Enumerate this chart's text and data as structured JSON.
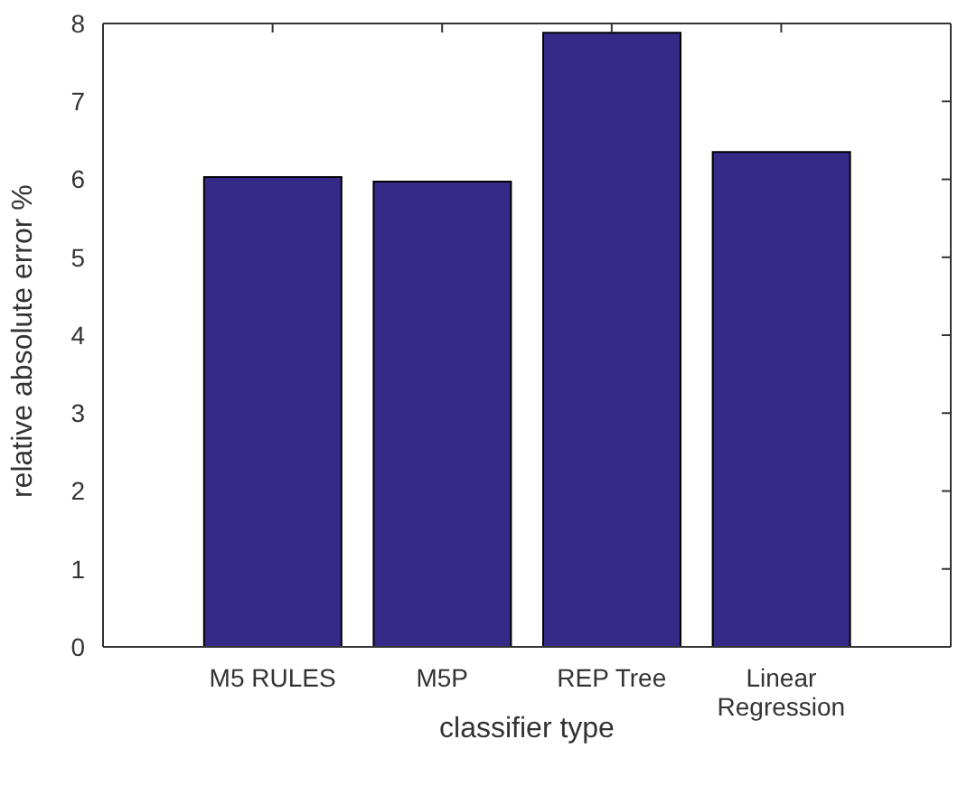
{
  "chart_data": {
    "type": "bar",
    "xlabel": "classifier type",
    "ylabel": "relative absolute error %",
    "categories": [
      "M5 RULES",
      "M5P",
      "REP Tree",
      "Linear Regression"
    ],
    "values": [
      6.03,
      5.97,
      7.88,
      6.35
    ],
    "color": "#352a87",
    "ylim": [
      0,
      8
    ],
    "yticks": [
      0,
      1,
      2,
      3,
      4,
      5,
      6,
      7,
      8
    ],
    "grid": false,
    "legend": false
  }
}
